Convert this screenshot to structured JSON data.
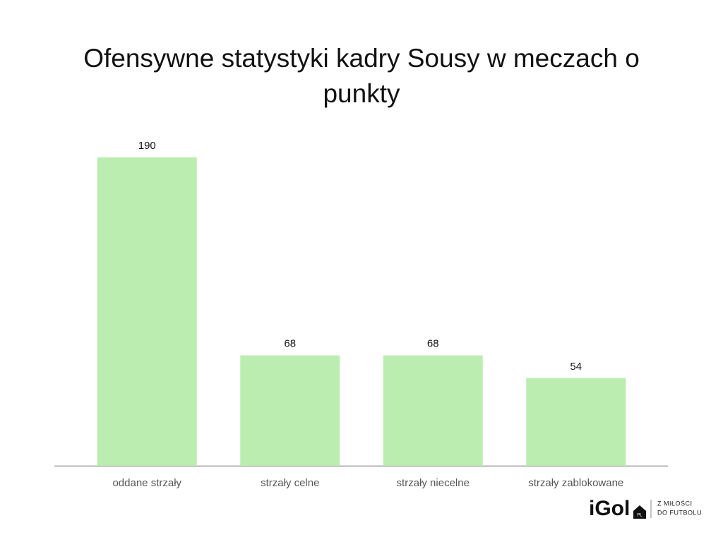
{
  "chart_data": {
    "type": "bar",
    "title": "Ofensywne statystyki kadry Sousy w meczach o punkty",
    "categories": [
      "oddane strzały",
      "strzały celne",
      "strzały niecelne",
      "strzały zablokowane"
    ],
    "values": [
      190,
      68,
      68,
      54
    ],
    "color": "#bbedb0"
  },
  "logo": {
    "name": "iGol",
    "suffix": "PL",
    "tagline": [
      "Z MIŁOŚCI",
      "DO FUTBOLU"
    ]
  }
}
